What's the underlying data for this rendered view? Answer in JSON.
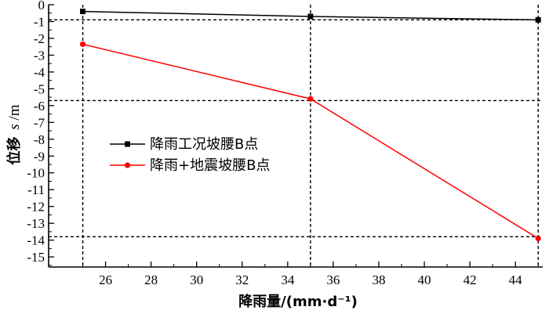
{
  "chart_data": {
    "type": "line",
    "x": [
      25,
      35,
      45
    ],
    "xlim": [
      23.5,
      45.2
    ],
    "ylim": [
      -15.6,
      0
    ],
    "xticks": [
      26,
      28,
      30,
      32,
      34,
      36,
      38,
      40,
      42,
      44
    ],
    "yticks": [
      0,
      -1,
      -2,
      -3,
      -4,
      -5,
      -6,
      -7,
      -8,
      -9,
      -10,
      -11,
      -12,
      -13,
      -14,
      -15
    ],
    "xlabel": "降雨量/(mm·d⁻¹)",
    "ylabel_cjk": "位移",
    "ylabel_var": "s",
    "ylabel_unit": "/m",
    "grid": false,
    "legend_position": "center-left",
    "series": [
      {
        "name": "降雨工况坡腰B点",
        "values": [
          -0.4,
          -0.7,
          -0.9
        ],
        "color": "#000000",
        "marker": "square"
      },
      {
        "name": "降雨+地震坡腰B点",
        "values": [
          -2.35,
          -5.6,
          -13.9
        ],
        "color": "#ff0000",
        "marker": "circle"
      }
    ],
    "reference_lines": {
      "horizontal": [
        -0.9,
        -5.7,
        -13.8
      ],
      "vertical": [
        25,
        35,
        45
      ]
    }
  }
}
